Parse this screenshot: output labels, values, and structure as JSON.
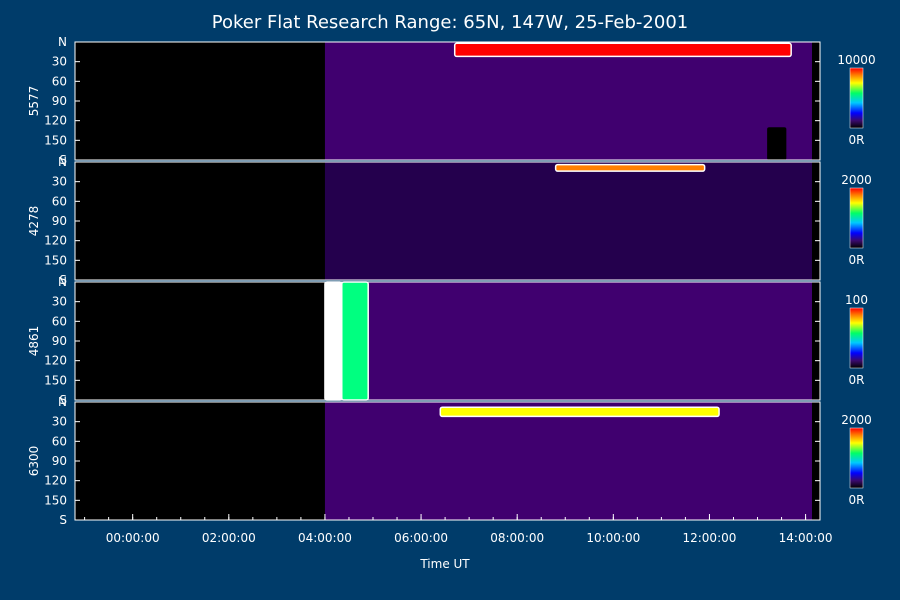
{
  "chart_data": {
    "type": "heatmap",
    "title": "Poker Flat Research Range: 65N, 147W, 25-Feb-2001",
    "xlabel": "Time UT",
    "x_tick_labels": [
      "00:00:00",
      "02:00:00",
      "04:00:00",
      "06:00:00",
      "08:00:00",
      "10:00:00",
      "12:00:00",
      "14:00:00"
    ],
    "x_tick_hours": [
      0,
      2,
      4,
      6,
      8,
      10,
      12,
      14
    ],
    "xlim_hours": [
      -1.2,
      14.3
    ],
    "data_start_hours": 4.0,
    "y_tick_labels": [
      "N",
      "30",
      "60",
      "90",
      "120",
      "150",
      "S"
    ],
    "y_tick_values": [
      0,
      30,
      60,
      90,
      120,
      150,
      180
    ],
    "ylim": [
      0,
      180
    ],
    "colorscale": [
      "#000000",
      "#2a005a",
      "#4b0082",
      "#0000ff",
      "#00c8ff",
      "#00ff80",
      "#ffff00",
      "#ff8000",
      "#ff0000",
      "#ffffff"
    ],
    "panels": [
      {
        "ylabel": "5577",
        "colorbar_max": "10000",
        "colorbar_min": "0R",
        "background_level": 0.18,
        "features": [
          {
            "t_start": 6.7,
            "t_end": 13.7,
            "y_start": 2,
            "y_end": 22,
            "level": 0.85
          },
          {
            "t_start": 13.2,
            "t_end": 13.6,
            "y_start": 130,
            "y_end": 180,
            "level": 0.0
          }
        ]
      },
      {
        "ylabel": "4278",
        "colorbar_max": "2000",
        "colorbar_min": "0R",
        "background_level": 0.12,
        "features": [
          {
            "t_start": 8.8,
            "t_end": 11.9,
            "y_start": 4,
            "y_end": 14,
            "level": 0.75
          }
        ]
      },
      {
        "ylabel": "4861",
        "colorbar_max": "100",
        "colorbar_min": "0R",
        "background_level": 0.2,
        "features": [
          {
            "t_start": 4.0,
            "t_end": 4.35,
            "y_start": 0,
            "y_end": 180,
            "level": 0.98
          },
          {
            "t_start": 4.35,
            "t_end": 4.9,
            "y_start": 0,
            "y_end": 180,
            "level": 0.55
          }
        ]
      },
      {
        "ylabel": "6300",
        "colorbar_max": "2000",
        "colorbar_min": "0R",
        "background_level": 0.22,
        "features": [
          {
            "t_start": 6.4,
            "t_end": 12.2,
            "y_start": 8,
            "y_end": 22,
            "level": 0.7
          }
        ]
      }
    ]
  }
}
